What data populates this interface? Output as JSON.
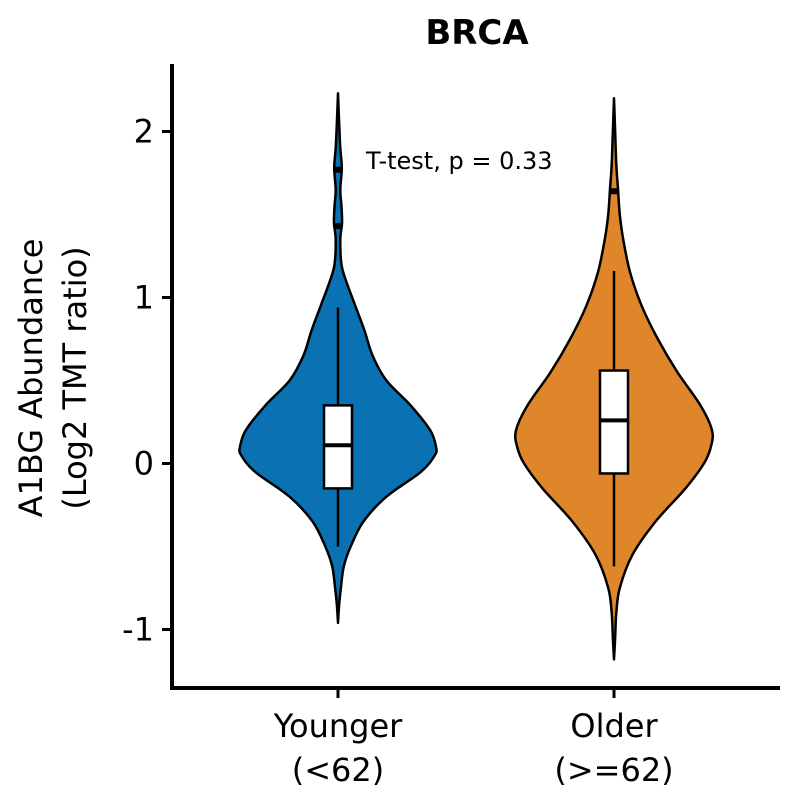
{
  "chart_data": {
    "type": "violin",
    "title": "BRCA",
    "ylabel_lines": [
      "A1BG Abundance",
      "(Log2 TMT ratio)"
    ],
    "xlabel": "",
    "ylim": [
      -1.35,
      2.4
    ],
    "y_ticks": [
      -1,
      0,
      1,
      2
    ],
    "y_tick_labels": [
      "-1",
      "0",
      "1",
      "2"
    ],
    "categories": [
      {
        "line1": "Younger",
        "line2": "(<62)"
      },
      {
        "line1": "Older",
        "line2": "(>=62)"
      }
    ],
    "annotation": "T-test, p = 0.33",
    "grid": false,
    "legend": "none",
    "series": [
      {
        "color": "#0a72b2",
        "box": {
          "q1": -0.15,
          "median": 0.11,
          "q3": 0.35,
          "whisker_low": -0.5,
          "whisker_high": 0.94
        },
        "outliers": [
          1.43,
          1.77
        ],
        "density": [
          [
            -0.96,
            0.0
          ],
          [
            -0.85,
            0.01
          ],
          [
            -0.75,
            0.025
          ],
          [
            -0.62,
            0.05
          ],
          [
            -0.5,
            0.11
          ],
          [
            -0.35,
            0.22
          ],
          [
            -0.2,
            0.42
          ],
          [
            -0.05,
            0.72
          ],
          [
            0.05,
            0.84
          ],
          [
            0.1,
            0.85
          ],
          [
            0.2,
            0.8
          ],
          [
            0.35,
            0.63
          ],
          [
            0.5,
            0.42
          ],
          [
            0.65,
            0.3
          ],
          [
            0.8,
            0.23
          ],
          [
            0.95,
            0.15
          ],
          [
            1.1,
            0.07
          ],
          [
            1.2,
            0.03
          ],
          [
            1.35,
            0.02
          ],
          [
            1.45,
            0.035
          ],
          [
            1.55,
            0.03
          ],
          [
            1.65,
            0.02
          ],
          [
            1.78,
            0.033
          ],
          [
            1.9,
            0.02
          ],
          [
            2.05,
            0.01
          ],
          [
            2.23,
            0.0
          ]
        ]
      },
      {
        "color": "#e0862a",
        "box": {
          "q1": -0.06,
          "median": 0.26,
          "q3": 0.56,
          "whisker_low": -0.62,
          "whisker_high": 1.16
        },
        "outliers": [
          1.64
        ],
        "density": [
          [
            -1.18,
            0.0
          ],
          [
            -1.05,
            0.01
          ],
          [
            -0.9,
            0.02
          ],
          [
            -0.75,
            0.05
          ],
          [
            -0.55,
            0.16
          ],
          [
            -0.35,
            0.36
          ],
          [
            -0.15,
            0.62
          ],
          [
            0.0,
            0.78
          ],
          [
            0.1,
            0.84
          ],
          [
            0.2,
            0.85
          ],
          [
            0.35,
            0.75
          ],
          [
            0.55,
            0.55
          ],
          [
            0.75,
            0.38
          ],
          [
            0.95,
            0.24
          ],
          [
            1.15,
            0.14
          ],
          [
            1.35,
            0.08
          ],
          [
            1.5,
            0.05
          ],
          [
            1.65,
            0.035
          ],
          [
            1.8,
            0.02
          ],
          [
            2.0,
            0.01
          ],
          [
            2.2,
            0.0
          ]
        ]
      }
    ]
  }
}
